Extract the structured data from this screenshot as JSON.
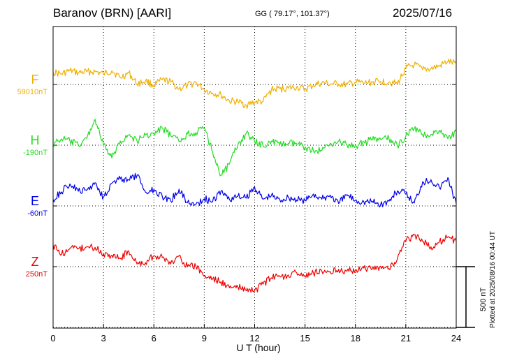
{
  "header": {
    "station": "Baranov (BRN)  [AARI]",
    "coords": "GG ( 79.17°, 101.37°)",
    "date": "2025/07/16"
  },
  "plotted_note": "Plotted at 2025/08/16 00:44 UT",
  "scale_label": "500 nT",
  "chart_data": {
    "type": "line",
    "xlabel": "U T (hour)",
    "xlim": [
      0,
      24
    ],
    "x_ticks": [
      0,
      3,
      6,
      9,
      12,
      15,
      18,
      21,
      24
    ],
    "scale_nT": 500,
    "grid": true,
    "series": [
      {
        "name": "F",
        "baseline": "59010nT",
        "color": "#f0b000",
        "offset_nT": 0,
        "points": [
          [
            0,
            -101
          ],
          [
            0.5,
            -86
          ],
          [
            1,
            -113
          ],
          [
            1.5,
            -96
          ],
          [
            2,
            -105
          ],
          [
            2.5,
            -106
          ],
          [
            3,
            -86
          ],
          [
            3.5,
            -113
          ],
          [
            4,
            -56
          ],
          [
            4.5,
            -95
          ],
          [
            5,
            -4
          ],
          [
            5.5,
            -30
          ],
          [
            6,
            8
          ],
          [
            6.5,
            -38
          ],
          [
            7,
            -21
          ],
          [
            7.5,
            36
          ],
          [
            8,
            9
          ],
          [
            8.5,
            -17
          ],
          [
            9,
            42
          ],
          [
            9.5,
            72
          ],
          [
            10,
            87
          ],
          [
            10.5,
            136
          ],
          [
            11,
            142
          ],
          [
            11.5,
            171
          ],
          [
            12,
            144
          ],
          [
            12.5,
            141
          ],
          [
            13,
            43
          ],
          [
            13.5,
            35
          ],
          [
            14,
            31
          ],
          [
            14.5,
            22
          ],
          [
            15,
            41
          ],
          [
            15.5,
            7
          ],
          [
            16,
            -13
          ],
          [
            16.5,
            -3
          ],
          [
            17,
            -4
          ],
          [
            17.5,
            2
          ],
          [
            18,
            -18
          ],
          [
            18.5,
            -10
          ],
          [
            19,
            -19
          ],
          [
            19.5,
            -24
          ],
          [
            20,
            -21
          ],
          [
            20.5,
            -6
          ],
          [
            21,
            -133
          ],
          [
            21.5,
            -162
          ],
          [
            22,
            -121
          ],
          [
            22.5,
            -131
          ],
          [
            23,
            -151
          ],
          [
            23.5,
            -189
          ],
          [
            24,
            -170
          ]
        ]
      },
      {
        "name": "H",
        "baseline": "-190nT",
        "color": "#22dd22",
        "offset_nT": 500,
        "points": [
          [
            0,
            -9
          ],
          [
            0.5,
            -52
          ],
          [
            1,
            -36
          ],
          [
            1.5,
            1
          ],
          [
            2,
            -56
          ],
          [
            2.5,
            -214
          ],
          [
            3,
            -1
          ],
          [
            3.5,
            106
          ],
          [
            4,
            -35
          ],
          [
            4.5,
            -82
          ],
          [
            5,
            -35
          ],
          [
            5.5,
            -85
          ],
          [
            6,
            -92
          ],
          [
            6.5,
            -142
          ],
          [
            7,
            -81
          ],
          [
            7.5,
            -31
          ],
          [
            8,
            -93
          ],
          [
            8.5,
            -105
          ],
          [
            9,
            -142
          ],
          [
            9.5,
            54
          ],
          [
            10,
            248
          ],
          [
            10.5,
            155
          ],
          [
            11,
            -5
          ],
          [
            11.5,
            -97
          ],
          [
            12,
            -28
          ],
          [
            12.5,
            4
          ],
          [
            13,
            -34
          ],
          [
            13.5,
            -5
          ],
          [
            14,
            -14
          ],
          [
            14.5,
            -12
          ],
          [
            15,
            16
          ],
          [
            15.5,
            44
          ],
          [
            16,
            44
          ],
          [
            16.5,
            -16
          ],
          [
            17,
            -32
          ],
          [
            17.5,
            -1
          ],
          [
            18,
            13
          ],
          [
            18.5,
            -29
          ],
          [
            19,
            -43
          ],
          [
            19.5,
            -48
          ],
          [
            20,
            -53
          ],
          [
            20.5,
            8
          ],
          [
            21,
            -76
          ],
          [
            21.5,
            -137
          ],
          [
            22,
            -89
          ],
          [
            22.5,
            -88
          ],
          [
            23,
            -123
          ],
          [
            23.5,
            -53
          ],
          [
            24,
            -116
          ]
        ]
      },
      {
        "name": "E",
        "baseline": "-60nT",
        "color": "#0000ee",
        "offset_nT": 1000,
        "points": [
          [
            0,
            -54
          ],
          [
            0.5,
            -115
          ],
          [
            1,
            -181
          ],
          [
            1.5,
            -121
          ],
          [
            2,
            -128
          ],
          [
            2.5,
            -191
          ],
          [
            3,
            -73
          ],
          [
            3.5,
            -187
          ],
          [
            4,
            -223
          ],
          [
            4.5,
            -213
          ],
          [
            5,
            -252
          ],
          [
            5.5,
            -114
          ],
          [
            6,
            -136
          ],
          [
            6.5,
            -79
          ],
          [
            7,
            -42
          ],
          [
            7.5,
            -138
          ],
          [
            8,
            -27
          ],
          [
            8.5,
            -13
          ],
          [
            9,
            -59
          ],
          [
            9.5,
            -37
          ],
          [
            10,
            -123
          ],
          [
            10.5,
            -54
          ],
          [
            11,
            -80
          ],
          [
            11.5,
            -64
          ],
          [
            12,
            -157
          ],
          [
            12.5,
            -56
          ],
          [
            13,
            -87
          ],
          [
            13.5,
            -49
          ],
          [
            14,
            -73
          ],
          [
            14.5,
            -49
          ],
          [
            15,
            -44
          ],
          [
            15.5,
            -98
          ],
          [
            16,
            -56
          ],
          [
            16.5,
            -89
          ],
          [
            17,
            -20
          ],
          [
            17.5,
            -93
          ],
          [
            18,
            -48
          ],
          [
            18.5,
            -34
          ],
          [
            19,
            -38
          ],
          [
            19.5,
            -12
          ],
          [
            20,
            -39
          ],
          [
            20.5,
            -124
          ],
          [
            21,
            -102
          ],
          [
            21.5,
            -24
          ],
          [
            22,
            -200
          ],
          [
            22.5,
            -216
          ],
          [
            23,
            -149
          ],
          [
            23.5,
            -233
          ],
          [
            24,
            -19
          ]
        ]
      },
      {
        "name": "Z",
        "baseline": "250nT",
        "color": "#ee0000",
        "offset_nT": 1500,
        "points": [
          [
            0,
            -179
          ],
          [
            0.5,
            -100
          ],
          [
            1,
            -150
          ],
          [
            1.5,
            -147
          ],
          [
            2,
            -163
          ],
          [
            2.5,
            -159
          ],
          [
            3,
            -105
          ],
          [
            3.5,
            -95
          ],
          [
            4,
            -65
          ],
          [
            4.5,
            -131
          ],
          [
            5,
            -21
          ],
          [
            5.5,
            -33
          ],
          [
            6,
            -90
          ],
          [
            6.5,
            -75
          ],
          [
            7,
            -21
          ],
          [
            7.5,
            -89
          ],
          [
            8,
            2
          ],
          [
            8.5,
            -4
          ],
          [
            9,
            79
          ],
          [
            9.5,
            100
          ],
          [
            10,
            123
          ],
          [
            10.5,
            174
          ],
          [
            11,
            168
          ],
          [
            11.5,
            198
          ],
          [
            12,
            198
          ],
          [
            12.5,
            144
          ],
          [
            13,
            92
          ],
          [
            13.5,
            81
          ],
          [
            14,
            68
          ],
          [
            14.5,
            50
          ],
          [
            15,
            79
          ],
          [
            15.5,
            52
          ],
          [
            16,
            37
          ],
          [
            16.5,
            40
          ],
          [
            17,
            21
          ],
          [
            17.5,
            35
          ],
          [
            18,
            30
          ],
          [
            18.5,
            12
          ],
          [
            19,
            19
          ],
          [
            19.5,
            -4
          ],
          [
            20,
            16
          ],
          [
            20.5,
            -65
          ],
          [
            21,
            -209
          ],
          [
            21.5,
            -260
          ],
          [
            22,
            -208
          ],
          [
            22.5,
            -164
          ],
          [
            23,
            -204
          ],
          [
            23.5,
            -244
          ],
          [
            24,
            -210
          ]
        ]
      }
    ]
  }
}
